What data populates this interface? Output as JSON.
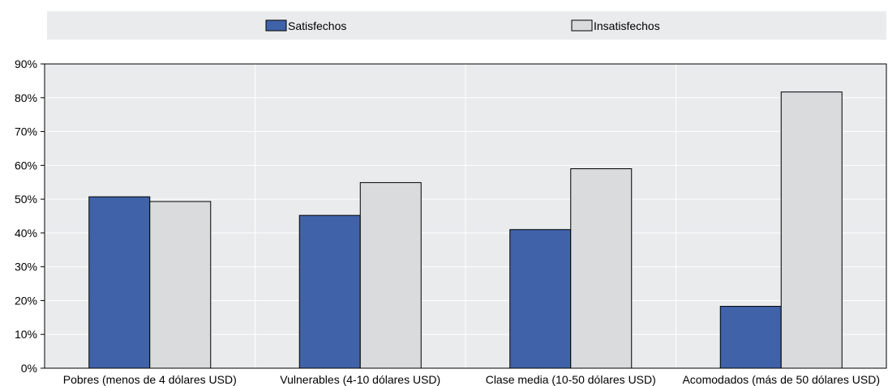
{
  "chart_data": {
    "type": "bar",
    "categories": [
      "Pobres (menos de 4 dólares USD)",
      "Vulnerables (4-10 dólares USD)",
      "Clase media (10-50 dólares USD)",
      "Acomodados (más de 50 dólares USD)"
    ],
    "series": [
      {
        "name": "Satisfechos",
        "values": [
          50.7,
          45.2,
          41.0,
          18.3
        ],
        "color": "#4062a9"
      },
      {
        "name": "Insatisfechos",
        "values": [
          49.3,
          54.9,
          59.0,
          81.7
        ],
        "color": "#dadbdd"
      }
    ],
    "yticks": [
      "0%",
      "10%",
      "20%",
      "30%",
      "40%",
      "50%",
      "60%",
      "70%",
      "80%",
      "90%"
    ],
    "ylim": [
      0,
      90
    ],
    "title": "",
    "xlabel": "",
    "ylabel": "",
    "grid": true,
    "legend_position": "top"
  }
}
